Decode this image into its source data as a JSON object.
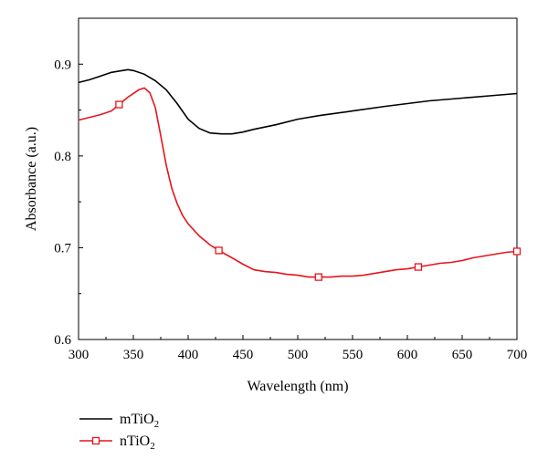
{
  "chart_data": {
    "type": "line",
    "title": "",
    "xlabel": "Wavelength (nm)",
    "ylabel": "Absorbance (a.u.)",
    "xlim": [
      300,
      700
    ],
    "ylim": [
      0.6,
      0.95
    ],
    "x_ticks": [
      300,
      350,
      400,
      450,
      500,
      550,
      600,
      650,
      700
    ],
    "y_ticks": [
      0.6,
      0.7,
      0.8,
      0.9
    ],
    "x_tick_labels": [
      "300",
      "350",
      "400",
      "450",
      "500",
      "550",
      "600",
      "650",
      "700"
    ],
    "y_tick_labels": [
      "0.6",
      "0.7",
      "0.8",
      "0.9"
    ],
    "grid": false,
    "legend_position": "bottom-left-outside",
    "series": [
      {
        "name": "mTiO",
        "name_subscript": "2",
        "color": "#000000",
        "marker": "none",
        "x": [
          300,
          310,
          320,
          330,
          340,
          345,
          350,
          360,
          370,
          380,
          390,
          400,
          410,
          420,
          430,
          440,
          450,
          460,
          480,
          500,
          520,
          550,
          580,
          600,
          620,
          650,
          680,
          700
        ],
        "y": [
          0.88,
          0.883,
          0.887,
          0.891,
          0.893,
          0.894,
          0.893,
          0.889,
          0.882,
          0.872,
          0.857,
          0.84,
          0.83,
          0.825,
          0.824,
          0.824,
          0.826,
          0.829,
          0.834,
          0.84,
          0.844,
          0.849,
          0.854,
          0.857,
          0.86,
          0.863,
          0.866,
          0.868
        ]
      },
      {
        "name": "nTiO",
        "name_subscript": "2",
        "color": "#e8141c",
        "marker": "square",
        "markers_x": [
          337,
          428,
          519,
          610,
          700
        ],
        "x": [
          300,
          310,
          320,
          330,
          337,
          345,
          355,
          360,
          365,
          370,
          375,
          380,
          385,
          390,
          395,
          400,
          410,
          420,
          428,
          440,
          450,
          460,
          470,
          480,
          490,
          500,
          510,
          519,
          530,
          540,
          550,
          560,
          570,
          580,
          590,
          600,
          610,
          620,
          630,
          640,
          650,
          660,
          670,
          680,
          690,
          700
        ],
        "y": [
          0.839,
          0.842,
          0.845,
          0.849,
          0.856,
          0.864,
          0.872,
          0.874,
          0.869,
          0.853,
          0.822,
          0.79,
          0.765,
          0.748,
          0.735,
          0.726,
          0.713,
          0.703,
          0.697,
          0.689,
          0.682,
          0.676,
          0.674,
          0.673,
          0.671,
          0.67,
          0.668,
          0.668,
          0.668,
          0.669,
          0.669,
          0.67,
          0.672,
          0.674,
          0.676,
          0.677,
          0.679,
          0.681,
          0.683,
          0.684,
          0.686,
          0.689,
          0.691,
          0.693,
          0.695,
          0.696
        ]
      }
    ]
  }
}
